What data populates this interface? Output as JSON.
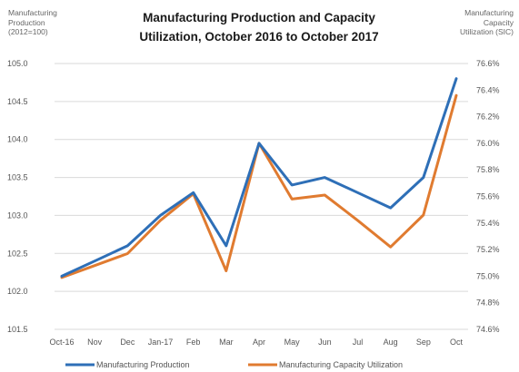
{
  "chart_data": {
    "type": "line",
    "title_line1": "Manufacturing Production and Capacity",
    "title_line2": "Utilization, October 2016 to October 2017",
    "ylabel_left": [
      "Manufacturing",
      "Production",
      "(2012=100)"
    ],
    "ylabel_right": [
      "Manufacturing",
      "Capacity",
      "Utilization (SIC)"
    ],
    "categories": [
      "Oct-16",
      "Nov",
      "Dec",
      "Jan-17",
      "Feb",
      "Mar",
      "Apr",
      "May",
      "Jun",
      "Jul",
      "Aug",
      "Sep",
      "Oct"
    ],
    "ylim_left": [
      101.5,
      105.0
    ],
    "yticks_left": [
      "101.5",
      "102.0",
      "102.5",
      "103.0",
      "103.5",
      "104.0",
      "104.5",
      "105.0"
    ],
    "ylim_right": [
      74.6,
      76.6
    ],
    "yticks_right": [
      "74.6%",
      "74.8%",
      "75.0%",
      "75.2%",
      "75.4%",
      "75.6%",
      "75.8%",
      "76.0%",
      "76.2%",
      "76.4%",
      "76.6%"
    ],
    "grid": "horizontal",
    "legend_position": "bottom",
    "series": [
      {
        "name": "Manufacturing Production",
        "axis": "left",
        "color": "#2e6fb7",
        "values": [
          102.2,
          102.4,
          102.6,
          103.0,
          103.3,
          102.6,
          103.95,
          103.4,
          103.5,
          103.3,
          103.1,
          103.5,
          104.8
        ]
      },
      {
        "name": "Manufacturing Capacity Utilization",
        "axis": "right",
        "color": "#e07b30",
        "values": [
          74.99,
          75.08,
          75.17,
          75.42,
          75.62,
          75.04,
          76.0,
          75.58,
          75.61,
          75.42,
          75.22,
          75.46,
          76.36
        ]
      }
    ]
  }
}
